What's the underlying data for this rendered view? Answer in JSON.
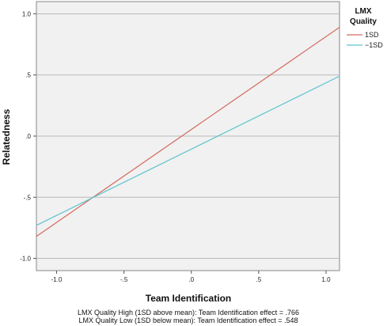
{
  "chart_data": {
    "type": "line",
    "xlabel": "Team Identification",
    "ylabel": "Relatedness",
    "xlim": [
      -1.15,
      1.1
    ],
    "ylim": [
      -1.1,
      1.1
    ],
    "x_ticks": [
      -1.0,
      -0.5,
      0.0,
      0.5,
      1.0
    ],
    "x_tick_labels": [
      "-1.0",
      "-.5",
      ".0",
      ".5",
      "1.0"
    ],
    "y_ticks": [
      1.0,
      0.5,
      0.0,
      -0.5,
      -1.0
    ],
    "y_tick_labels": [
      "1.0",
      ".5",
      ".0",
      "-.5",
      "-1.0"
    ],
    "grid": "horizontal",
    "legend": {
      "title_lines": [
        "LMX",
        "Quality"
      ],
      "placement": "right"
    },
    "series": [
      {
        "name": "1SD",
        "color": "#d46a5f",
        "x": [
          -1.15,
          1.1
        ],
        "y": [
          -0.82,
          0.89
        ]
      },
      {
        "name": "−1SD",
        "color": "#5cc4cf",
        "x": [
          -1.15,
          1.1
        ],
        "y": [
          -0.73,
          0.49
        ]
      }
    ],
    "annotations": [
      "LMX Quality High (1SD above mean): Team Identification effect = .766",
      "LMX Quality Low (1SD below mean): Team Identification effect = .548"
    ]
  }
}
